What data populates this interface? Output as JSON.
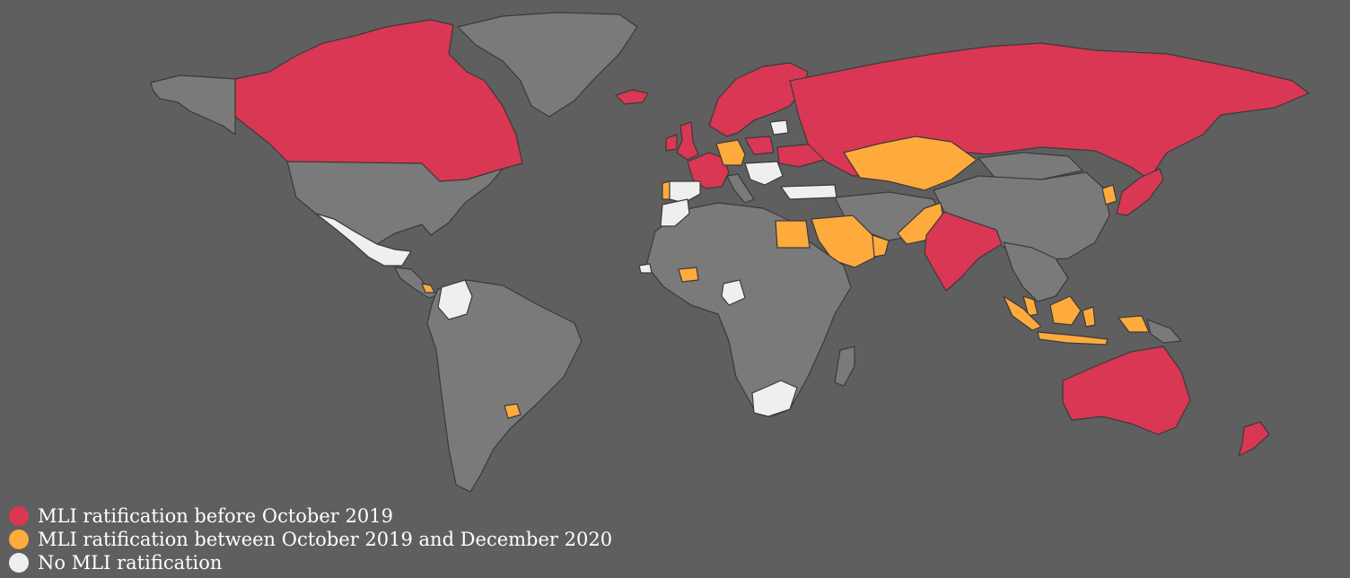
{
  "colors": {
    "background": "#5f5f5f",
    "land_default": "#7a7a7a",
    "land_stroke": "#3a3a3a",
    "before_2019": "#d93753",
    "between_2019_2020": "#ffaa3c",
    "none": "#efefef"
  },
  "legend": {
    "items": [
      {
        "label": "MLI ratification before October 2019",
        "color": "#d93753"
      },
      {
        "label": "MLI ratification between October 2019 and December 2020",
        "color": "#ffaa3c"
      },
      {
        "label": "No MLI ratification",
        "color": "#efefef"
      }
    ]
  },
  "regions": [
    {
      "name": "Alaska",
      "status": "other"
    },
    {
      "name": "Canada",
      "status": "before"
    },
    {
      "name": "Greenland",
      "status": "other"
    },
    {
      "name": "Iceland",
      "status": "before"
    },
    {
      "name": "United States",
      "status": "other"
    },
    {
      "name": "Mexico",
      "status": "none"
    },
    {
      "name": "Central America",
      "status": "other"
    },
    {
      "name": "Costa Rica",
      "status": "between"
    },
    {
      "name": "Colombia",
      "status": "none"
    },
    {
      "name": "South America",
      "status": "other"
    },
    {
      "name": "Uruguay",
      "status": "between"
    },
    {
      "name": "United Kingdom",
      "status": "before"
    },
    {
      "name": "Ireland",
      "status": "before"
    },
    {
      "name": "Scandinavia",
      "status": "before"
    },
    {
      "name": "France",
      "status": "before"
    },
    {
      "name": "Germany",
      "status": "between"
    },
    {
      "name": "Poland",
      "status": "before"
    },
    {
      "name": "Portugal",
      "status": "between"
    },
    {
      "name": "Spain",
      "status": "none"
    },
    {
      "name": "Italy",
      "status": "other"
    },
    {
      "name": "Balkans",
      "status": "none"
    },
    {
      "name": "Ukraine",
      "status": "before"
    },
    {
      "name": "Belarus",
      "status": "none"
    },
    {
      "name": "Turkey",
      "status": "none"
    },
    {
      "name": "Russia",
      "status": "before"
    },
    {
      "name": "Kazakhstan",
      "status": "between"
    },
    {
      "name": "Morocco",
      "status": "none"
    },
    {
      "name": "Africa",
      "status": "other"
    },
    {
      "name": "Egypt",
      "status": "between"
    },
    {
      "name": "Senegal",
      "status": "none"
    },
    {
      "name": "Burkina Faso",
      "status": "between"
    },
    {
      "name": "Nigeria",
      "status": "none"
    },
    {
      "name": "South Africa",
      "status": "none"
    },
    {
      "name": "Madagascar",
      "status": "other"
    },
    {
      "name": "Saudi Arabia",
      "status": "between"
    },
    {
      "name": "Oman",
      "status": "between"
    },
    {
      "name": "Pakistan",
      "status": "between"
    },
    {
      "name": "India",
      "status": "before"
    },
    {
      "name": "Middle East",
      "status": "other"
    },
    {
      "name": "China",
      "status": "other"
    },
    {
      "name": "Mongolia",
      "status": "other"
    },
    {
      "name": "South Korea",
      "status": "between"
    },
    {
      "name": "Japan",
      "status": "before"
    },
    {
      "name": "Southeast Asia",
      "status": "other"
    },
    {
      "name": "Malaysia",
      "status": "between"
    },
    {
      "name": "Sumatra",
      "status": "between"
    },
    {
      "name": "Java",
      "status": "between"
    },
    {
      "name": "Borneo",
      "status": "between"
    },
    {
      "name": "Sulawesi",
      "status": "between"
    },
    {
      "name": "Papua",
      "status": "between"
    },
    {
      "name": "Papua New Guinea",
      "status": "other"
    },
    {
      "name": "Australia",
      "status": "before"
    },
    {
      "name": "New Zealand",
      "status": "before"
    }
  ]
}
